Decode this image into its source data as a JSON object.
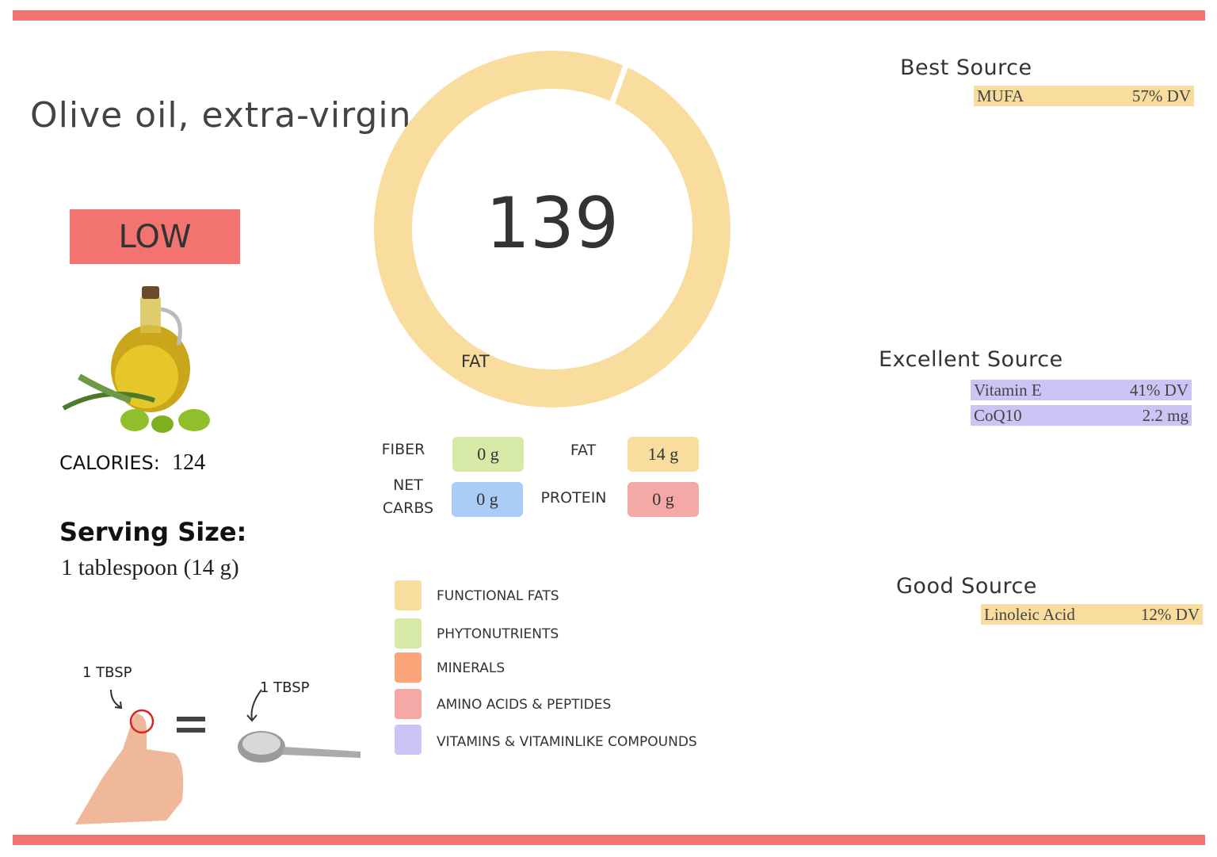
{
  "header": {
    "title": "Olive oil, extra-virgin",
    "rating": "LOW"
  },
  "score": "139",
  "donut_label": "FAT",
  "calories": {
    "label": "CALORIES:",
    "value": "124"
  },
  "serving": {
    "title": "Serving Size:",
    "text": "1 tablespoon (14 g)"
  },
  "illustration": {
    "left": "1 TBSP",
    "right": "1 TBSP"
  },
  "macros": [
    {
      "label": "FIBER",
      "value": "0 g"
    },
    {
      "label": "FAT",
      "value": "14 g"
    },
    {
      "label": "NET CARBS",
      "value": "0 g"
    },
    {
      "label": "PROTEIN",
      "value": "0 g"
    }
  ],
  "legend": [
    "FUNCTIONAL FATS",
    "PHYTONUTRIENTS",
    "MINERALS",
    "AMINO ACIDS & PEPTIDES",
    "VITAMINS & VITAMINLIKE COMPOUNDS"
  ],
  "sources": [
    {
      "title": "Best Source",
      "items": [
        {
          "name": "MUFA",
          "value": "57% DV"
        }
      ]
    },
    {
      "title": "Excellent Source",
      "items": [
        {
          "name": "Vitamin E",
          "value": "41% DV"
        },
        {
          "name": "CoQ10",
          "value": "2.2 mg"
        }
      ]
    },
    {
      "title": "Good Source",
      "items": [
        {
          "name": "Linoleic Acid",
          "value": "12% DV"
        }
      ]
    }
  ]
}
